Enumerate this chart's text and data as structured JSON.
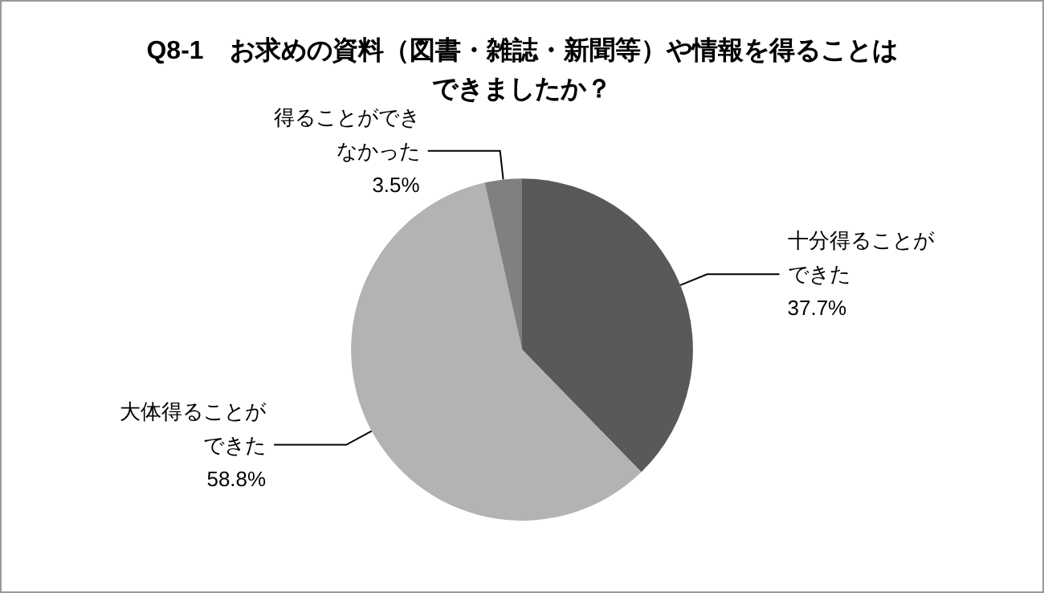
{
  "chart_data": {
    "type": "pie",
    "title": "Q8-1　お求めの資料（図書・雑誌・新聞等）や情報を得ることはできましたか？",
    "categories": [
      "十分得ることができた",
      "大体得ることができた",
      "得ることができなかった"
    ],
    "values": [
      37.7,
      58.8,
      3.5
    ],
    "colors": [
      "#595959",
      "#b3b3b3",
      "#808080"
    ],
    "value_labels": [
      "37.7%",
      "58.8%",
      "3.5%"
    ],
    "legend": false
  }
}
